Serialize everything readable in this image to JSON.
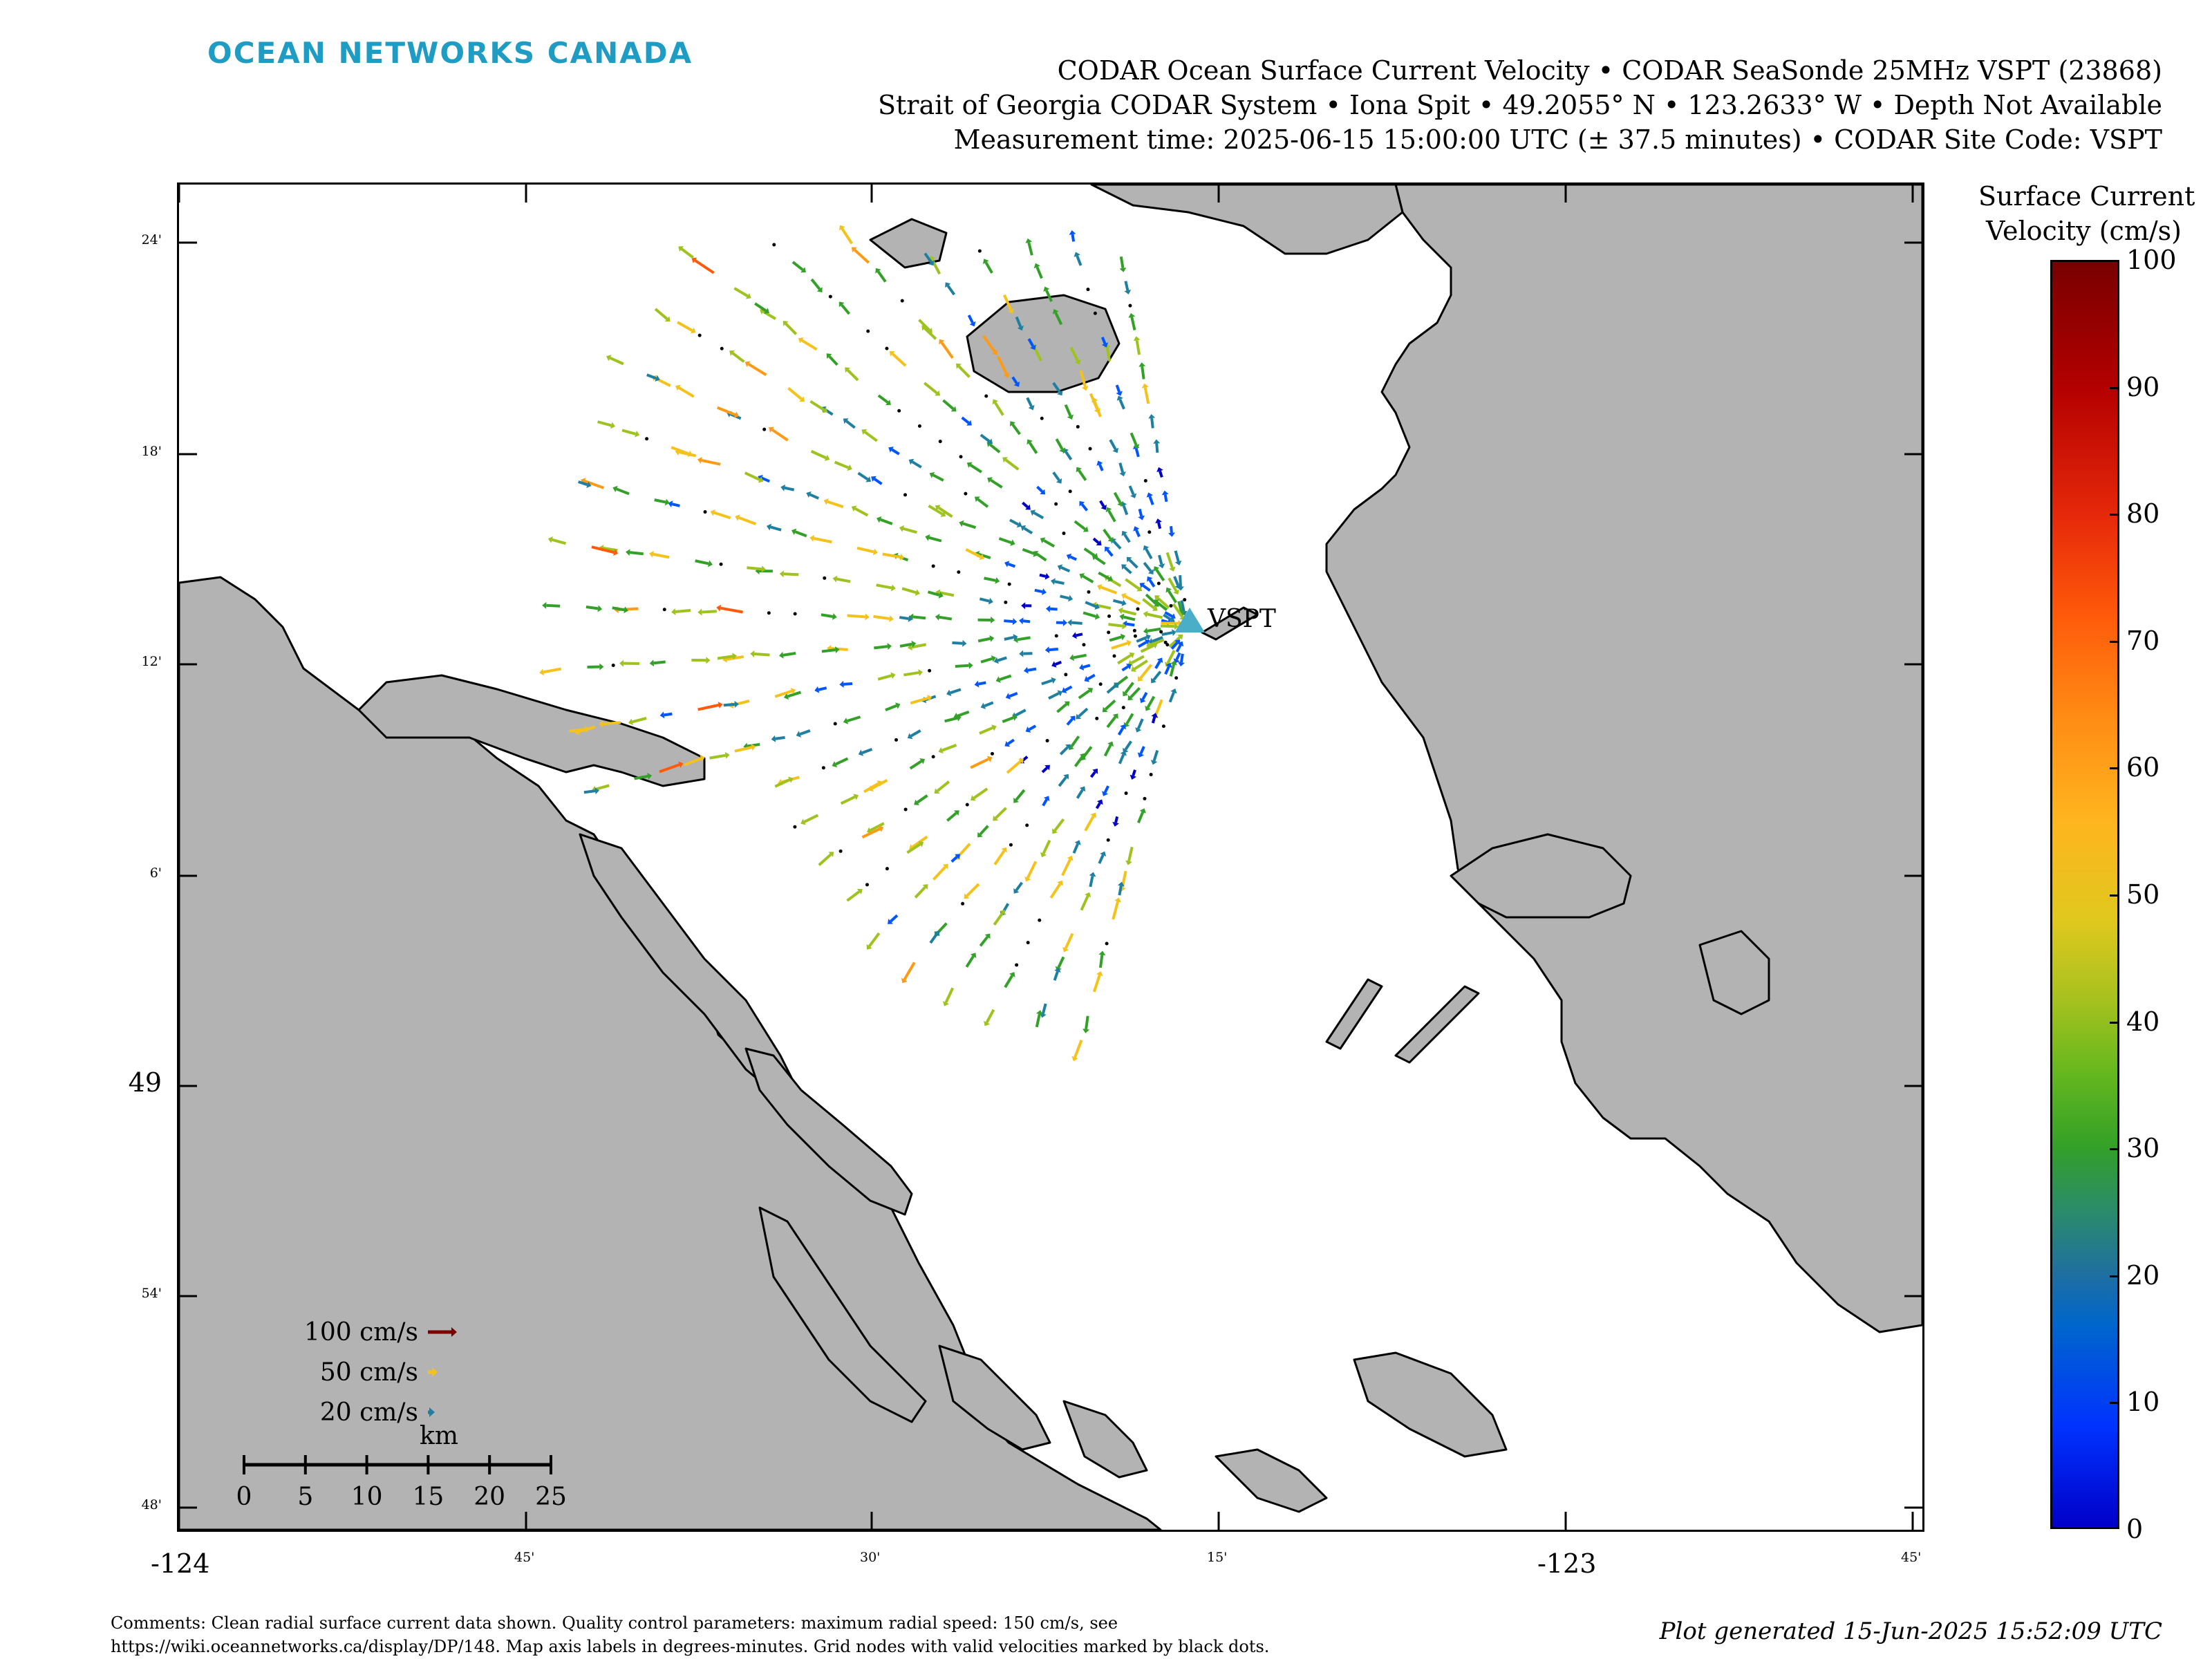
{
  "header": {
    "logo_text": "OCEAN NETWORKS CANADA",
    "title_line1": "CODAR Ocean Surface Current Velocity • CODAR SeaSonde 25MHz VSPT (23868)",
    "title_line2": "Strait of Georgia CODAR System • Iona Spit • 49.2055° N • 123.2633° W • Depth Not Available",
    "title_line3": "Measurement time: 2025-06-15 15:00:00 UTC (± 37.5 minutes) • CODAR Site Code: VSPT"
  },
  "map": {
    "station_label": "VSPT",
    "station_color": "#4aaec8",
    "land_color": "#b3b3b3",
    "lat_ticks": [
      {
        "label": "24'",
        "big": false
      },
      {
        "label": "18'",
        "big": false
      },
      {
        "label": "12'",
        "big": false
      },
      {
        "label": "6'",
        "big": false
      },
      {
        "label": "49",
        "big": true
      },
      {
        "label": "54'",
        "big": false
      },
      {
        "label": "48'",
        "big": false
      }
    ],
    "lon_ticks": [
      {
        "label": "-124",
        "big": true
      },
      {
        "label": "45'",
        "big": false
      },
      {
        "label": "30'",
        "big": false
      },
      {
        "label": "15'",
        "big": false
      },
      {
        "label": "-123",
        "big": true
      },
      {
        "label": "45'",
        "big": false
      }
    ]
  },
  "legend": {
    "vectors": [
      {
        "label": "100 cm/s",
        "color": "#7a0000"
      },
      {
        "label": "50 cm/s",
        "color": "#f5c21b"
      },
      {
        "label": "20 cm/s",
        "color": "#1f7fa0"
      }
    ],
    "scale_title": "km",
    "scale_labels": [
      "0",
      "5",
      "10",
      "15",
      "20",
      "25"
    ]
  },
  "colorbar": {
    "title_line1": "Surface Current",
    "title_line2": "Velocity (cm/s)",
    "labels": [
      "100",
      "90",
      "80",
      "70",
      "60",
      "50",
      "40",
      "30",
      "20",
      "10",
      "0"
    ]
  },
  "footer": {
    "comment_line1": "Comments: Clean radial surface current data shown. Quality control parameters: maximum radial speed: 150 cm/s, see",
    "comment_line2": "https://wiki.oceannetworks.ca/display/DP/148. Map axis labels in degrees-minutes. Grid nodes with valid velocities marked by black dots.",
    "generated": "Plot generated 15-Jun-2025 15:52:09 UTC"
  }
}
